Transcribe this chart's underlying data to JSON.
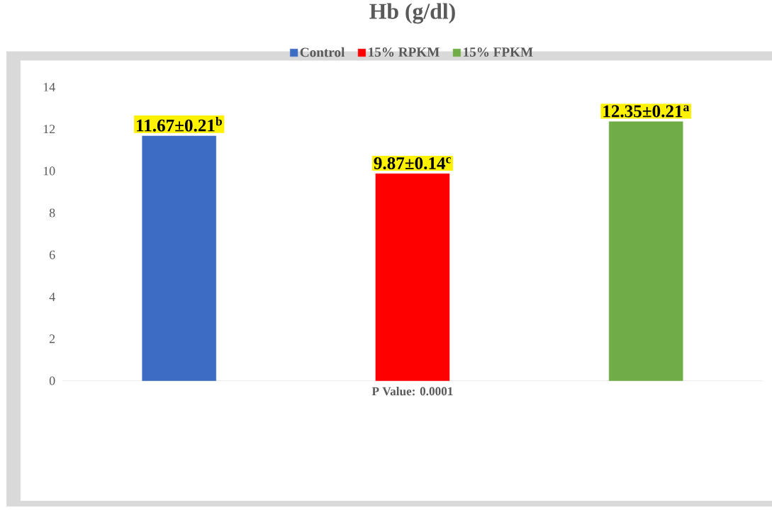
{
  "chart_data": {
    "type": "bar",
    "title": "Hb (g/dl)",
    "categories": [
      null,
      null,
      null
    ],
    "series": [
      {
        "name": "Control",
        "color": "#3d6cc4",
        "values": [
          11.67,
          null,
          null
        ],
        "value_labels": [
          "11.67±0.21$^{b}$",
          null,
          null
        ]
      },
      {
        "name": "15% RPKM",
        "color": "#ff0000",
        "values": [
          null,
          9.87,
          null
        ],
        "value_labels": [
          null,
          "9.87±0.14$^{c}$",
          null
        ]
      },
      {
        "name": "15% FPKM",
        "color": "#70ad47",
        "values": [
          null,
          null,
          12.35
        ],
        "value_labels": [
          null,
          null,
          "12.35±0.21$^{a}$"
        ]
      }
    ],
    "ylim": [
      0,
      14
    ],
    "yticks": [
      0,
      2,
      4,
      6,
      8,
      10,
      12,
      14
    ],
    "legend": "top",
    "annotations": [
      "P Value: 0.0001"
    ]
  }
}
